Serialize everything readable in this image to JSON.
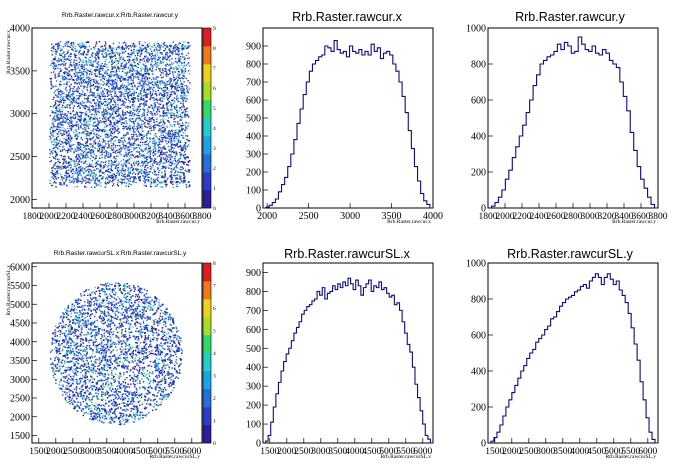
{
  "chart_data": [
    {
      "type": "heatmap",
      "title": "Rrb.Raster.rawcur.x:Rrb.Raster.rawcur.y",
      "xlabel": "Rrb.Raster.rawcur.y",
      "ylabel": "Rrb.Raster.rawcur.x",
      "xlim": [
        1800,
        3800
      ],
      "ylim": [
        1900,
        4000
      ],
      "xticks": [
        "1800",
        "2000",
        "2200",
        "2400",
        "2600",
        "2800",
        "3000",
        "3200",
        "3400",
        "3600",
        "3800"
      ],
      "yticks": [
        "2000",
        "2500",
        "3000",
        "3500",
        "4000"
      ],
      "shape": "rect",
      "region": {
        "x": [
          2000,
          3650
        ],
        "y": [
          2150,
          3850
        ]
      },
      "zlim": [
        0,
        9
      ],
      "zticks": [
        "0",
        "1",
        "2",
        "3",
        "4",
        "5",
        "6",
        "7",
        "8",
        "9"
      ],
      "palette": [
        "#2b1e9e",
        "#2e3bd0",
        "#2470e0",
        "#1aa6e6",
        "#22cfc9",
        "#33d96a",
        "#a8de28",
        "#f1d21a",
        "#f2791a",
        "#e01e1e"
      ]
    },
    {
      "type": "line",
      "title": "Rrb.Raster.rawcur.x",
      "xlabel": "Rrb.Raster.rawcur.x",
      "xlim": [
        1950,
        4000
      ],
      "ylim": [
        0,
        1000
      ],
      "xticks": [
        "2000",
        "2500",
        "3000",
        "3500",
        "4000"
      ],
      "yticks": [
        "0",
        "100",
        "200",
        "300",
        "400",
        "500",
        "600",
        "700",
        "800",
        "900"
      ],
      "series": [
        {
          "values": [
            0,
            5,
            15,
            30,
            50,
            90,
            130,
            170,
            230,
            300,
            380,
            470,
            550,
            630,
            700,
            760,
            800,
            820,
            840,
            850,
            900,
            890,
            870,
            930,
            880,
            860,
            870,
            840,
            900,
            870,
            860,
            880,
            850,
            870,
            850,
            910,
            870,
            890,
            830,
            860,
            870,
            850,
            800,
            760,
            700,
            620,
            530,
            430,
            330,
            230,
            150,
            80,
            40,
            20,
            0
          ]
        }
      ]
    },
    {
      "type": "line",
      "title": "Rrb.Raster.rawcur.y",
      "xlabel": "Rrb.Raster.rawcur.y",
      "xlim": [
        1800,
        3800
      ],
      "ylim": [
        0,
        1000
      ],
      "xticks": [
        "1800",
        "2000",
        "2200",
        "2400",
        "2600",
        "2800",
        "3000",
        "3200",
        "3400",
        "3600",
        "3800"
      ],
      "yticks": [
        "0",
        "200",
        "400",
        "600",
        "800",
        "1000"
      ],
      "series": [
        {
          "values": [
            0,
            10,
            30,
            60,
            100,
            160,
            210,
            280,
            340,
            400,
            460,
            530,
            600,
            680,
            740,
            800,
            820,
            840,
            850,
            870,
            910,
            880,
            920,
            900,
            860,
            870,
            950,
            910,
            880,
            870,
            900,
            860,
            850,
            880,
            860,
            820,
            800,
            780,
            700,
            620,
            540,
            420,
            320,
            230,
            160,
            110,
            60,
            20,
            0
          ]
        }
      ]
    },
    {
      "type": "heatmap",
      "title": "Rrb.Raster.rawcurSL.x:Rrb.Raster.rawcurSL.y",
      "xlabel": "Rrb.Raster.rawcurSL.y",
      "ylabel": "Rrb.Raster.rawcurSL.x",
      "xlim": [
        1300,
        6300
      ],
      "ylim": [
        1300,
        6100
      ],
      "xticks": [
        "1500",
        "2000",
        "2500",
        "3000",
        "3500",
        "4000",
        "4500",
        "5000",
        "5500",
        "6000"
      ],
      "yticks": [
        "1500",
        "2000",
        "2500",
        "3000",
        "3500",
        "4000",
        "4500",
        "5000",
        "5500",
        "6000"
      ],
      "shape": "ellipse",
      "region": {
        "x": [
          1800,
          5700
        ],
        "y": [
          1800,
          5600
        ]
      },
      "zlim": [
        0,
        8
      ],
      "zticks": [
        "0",
        "1",
        "2",
        "3",
        "4",
        "5",
        "6",
        "7",
        "8"
      ],
      "palette": [
        "#2b1e9e",
        "#2e3bd0",
        "#2470e0",
        "#1aa6e6",
        "#22cfc9",
        "#33d96a",
        "#a8de28",
        "#f1d21a",
        "#f2791a",
        "#e01e1e"
      ]
    },
    {
      "type": "line",
      "title": "Rrb.Raster.rawcurSL.x",
      "xlabel": "Rrb.Raster.rawcurSL.x",
      "xlim": [
        1300,
        6300
      ],
      "ylim": [
        0,
        950
      ],
      "xticks": [
        "1500",
        "2000",
        "2500",
        "3000",
        "3500",
        "4000",
        "4500",
        "5000",
        "5500",
        "6000"
      ],
      "yticks": [
        "0",
        "100",
        "200",
        "300",
        "400",
        "500",
        "600",
        "700",
        "800",
        "900"
      ],
      "series": [
        {
          "values": [
            0,
            10,
            40,
            110,
            190,
            260,
            320,
            380,
            430,
            470,
            500,
            540,
            580,
            610,
            640,
            680,
            700,
            720,
            730,
            750,
            760,
            800,
            780,
            820,
            760,
            790,
            800,
            830,
            810,
            840,
            820,
            850,
            830,
            870,
            840,
            810,
            860,
            830,
            780,
            820,
            840,
            860,
            800,
            830,
            820,
            850,
            810,
            820,
            790,
            770,
            780,
            730,
            740,
            700,
            640,
            580,
            520,
            480,
            400,
            310,
            240,
            170,
            100,
            40,
            20,
            0
          ]
        }
      ]
    },
    {
      "type": "line",
      "title": "Rrb.Raster.rawcurSL.y",
      "xlabel": "Rrb.Raster.rawcurSL.y",
      "xlim": [
        1300,
        6300
      ],
      "ylim": [
        0,
        1000
      ],
      "xticks": [
        "1500",
        "2000",
        "2500",
        "3000",
        "3500",
        "4000",
        "4500",
        "5000",
        "5500",
        "6000"
      ],
      "yticks": [
        "0",
        "200",
        "400",
        "600",
        "800",
        "1000"
      ],
      "series": [
        {
          "values": [
            0,
            10,
            30,
            60,
            100,
            150,
            200,
            240,
            280,
            320,
            360,
            400,
            430,
            470,
            500,
            520,
            560,
            580,
            600,
            630,
            650,
            690,
            700,
            730,
            760,
            780,
            800,
            810,
            820,
            840,
            850,
            870,
            880,
            860,
            900,
            920,
            940,
            920,
            880,
            920,
            940,
            910,
            880,
            900,
            850,
            820,
            780,
            720,
            640,
            550,
            460,
            340,
            240,
            140,
            60,
            20,
            0
          ]
        }
      ]
    }
  ]
}
